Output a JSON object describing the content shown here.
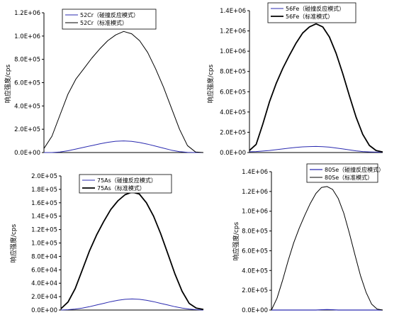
{
  "chart_data": [
    {
      "type": "line",
      "ylabel": "响应强度/cps",
      "ylim": [
        0,
        1200000
      ],
      "yticks": [
        "0.0E+00",
        "2.0E+05",
        "4.0E+05",
        "6.0E+05",
        "8.0E+05",
        "1.0E+06",
        "1.2E+06"
      ],
      "xlim": [
        0,
        1
      ],
      "x": [
        0,
        0.05,
        0.1,
        0.15,
        0.2,
        0.25,
        0.3,
        0.35,
        0.4,
        0.45,
        0.5,
        0.55,
        0.6,
        0.65,
        0.7,
        0.75,
        0.8,
        0.85,
        0.9,
        0.95,
        1
      ],
      "series": [
        {
          "name": "52Cr（碰撞反应模式）",
          "color": "#2b2bb0",
          "width": 1,
          "values": [
            0,
            0,
            5000,
            15000,
            30000,
            45000,
            60000,
            75000,
            88000,
            97000,
            100000,
            96000,
            86000,
            72000,
            55000,
            37000,
            20000,
            8000,
            2000,
            0,
            0
          ]
        },
        {
          "name": "52Cr（标准模式）",
          "color": "#000000",
          "width": 1,
          "values": [
            35000,
            140000,
            320000,
            500000,
            630000,
            720000,
            810000,
            890000,
            960000,
            1010000,
            1040000,
            1020000,
            960000,
            860000,
            720000,
            560000,
            380000,
            200000,
            60000,
            5000,
            0
          ]
        }
      ]
    },
    {
      "type": "line",
      "ylabel": "响应强度/cps",
      "ylim": [
        0,
        1400000
      ],
      "yticks": [
        "0.0E+00",
        "2.0E+05",
        "4.0E+05",
        "6.0E+05",
        "8.0E+05",
        "1.0E+06",
        "1.2E+06",
        "1.4E+06"
      ],
      "xlim": [
        0,
        1
      ],
      "x": [
        0,
        0.05,
        0.1,
        0.15,
        0.2,
        0.25,
        0.3,
        0.35,
        0.4,
        0.45,
        0.5,
        0.55,
        0.6,
        0.65,
        0.7,
        0.75,
        0.8,
        0.85,
        0.9,
        0.95,
        1
      ],
      "series": [
        {
          "name": "56Fe（碰撞反应模式）",
          "color": "#2b2bb0",
          "width": 1,
          "values": [
            8000,
            10000,
            15000,
            20000,
            28000,
            36000,
            44000,
            51000,
            56000,
            59000,
            60000,
            58000,
            53000,
            45000,
            36000,
            26000,
            17000,
            10000,
            6000,
            4000,
            3000
          ]
        },
        {
          "name": "56Fe（标准模式）",
          "color": "#000000",
          "width": 1.8,
          "values": [
            20000,
            80000,
            280000,
            500000,
            680000,
            830000,
            960000,
            1080000,
            1180000,
            1240000,
            1270000,
            1240000,
            1140000,
            980000,
            780000,
            560000,
            350000,
            180000,
            70000,
            20000,
            5000
          ]
        }
      ]
    },
    {
      "type": "line",
      "ylabel": "响应强度/cps",
      "ylim": [
        0,
        200000
      ],
      "yticks": [
        "0.0E+00",
        "2.0E+04",
        "4.0E+04",
        "6.0E+04",
        "8.0E+04",
        "1.0E+05",
        "1.2E+05",
        "1.4E+05",
        "1.6E+05",
        "1.8E+05",
        "2.0E+05"
      ],
      "xlim": [
        0,
        1
      ],
      "x": [
        0,
        0.05,
        0.1,
        0.15,
        0.2,
        0.25,
        0.3,
        0.35,
        0.4,
        0.45,
        0.5,
        0.55,
        0.6,
        0.65,
        0.7,
        0.75,
        0.8,
        0.85,
        0.9,
        0.95,
        1
      ],
      "series": [
        {
          "name": "75As（碰撞反应模式）",
          "color": "#2b2bb0",
          "width": 1,
          "values": [
            0,
            500,
            1500,
            3000,
            5000,
            7500,
            10000,
            12500,
            14500,
            16000,
            16500,
            16000,
            14500,
            12500,
            10000,
            7500,
            5000,
            3000,
            1500,
            500,
            0
          ]
        },
        {
          "name": "75As（标准模式）",
          "color": "#000000",
          "width": 1.8,
          "values": [
            2000,
            12000,
            32000,
            60000,
            88000,
            112000,
            132000,
            150000,
            163000,
            172000,
            176000,
            173000,
            160000,
            140000,
            114000,
            84000,
            54000,
            28000,
            10000,
            3000,
            1000
          ]
        }
      ]
    },
    {
      "type": "line",
      "ylabel": "响应强度/cps",
      "ylim": [
        0,
        1400000
      ],
      "yticks": [
        "0.0E+00",
        "2.0E+05",
        "4.0E+05",
        "6.0E+05",
        "8.0E+05",
        "1.0E+06",
        "1.2E+06",
        "1.4E+06"
      ],
      "xlim": [
        0,
        1
      ],
      "x": [
        0,
        0.05,
        0.1,
        0.15,
        0.2,
        0.25,
        0.3,
        0.35,
        0.4,
        0.45,
        0.5,
        0.55,
        0.6,
        0.65,
        0.7,
        0.75,
        0.8,
        0.85,
        0.9,
        0.95,
        1
      ],
      "series": [
        {
          "name": "80Se（碰撞反应模式）",
          "color": "#2b2bb0",
          "width": 1.2,
          "values": [
            0,
            0,
            0,
            0,
            0,
            0,
            0,
            0,
            0,
            3000,
            4000,
            3000,
            0,
            0,
            0,
            0,
            0,
            0,
            0,
            0,
            0
          ]
        },
        {
          "name": "80Se（标准模式）",
          "color": "#000000",
          "width": 1,
          "values": [
            0,
            120000,
            300000,
            500000,
            680000,
            830000,
            960000,
            1080000,
            1180000,
            1240000,
            1250000,
            1220000,
            1130000,
            980000,
            780000,
            560000,
            350000,
            180000,
            60000,
            10000,
            0
          ]
        }
      ]
    }
  ]
}
